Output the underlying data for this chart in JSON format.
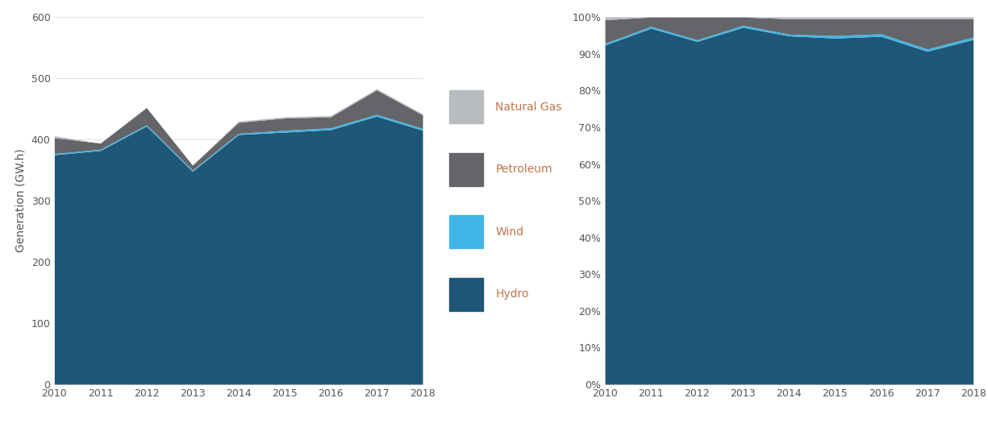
{
  "years": [
    2010,
    2011,
    2012,
    2013,
    2014,
    2015,
    2016,
    2017,
    2018
  ],
  "hydro": [
    375,
    382,
    422,
    348,
    408,
    412,
    416,
    438,
    415
  ],
  "wind": [
    2,
    2,
    2,
    2,
    2,
    3,
    3,
    3,
    3
  ],
  "petroleum": [
    26,
    10,
    28,
    8,
    18,
    20,
    18,
    40,
    22
  ],
  "natural_gas": [
    3,
    0,
    0,
    0,
    2,
    2,
    2,
    2,
    2
  ],
  "colors": {
    "hydro": "#1E5777",
    "wind": "#41B6E6",
    "petroleum": "#636569",
    "natural_gas": "#B8BCBE"
  },
  "legend_labels": {
    "natural_gas": "Natural Gas",
    "petroleum": "Petroleum",
    "wind": "Wind",
    "hydro": "Hydro"
  },
  "legend_text_color": "#C0744A",
  "ylabel_left": "Generation (GW.h)",
  "ylim_left": [
    0,
    600
  ],
  "yticks_left": [
    0,
    100,
    200,
    300,
    400,
    500,
    600
  ],
  "background_color": "#FFFFFF",
  "grid_color": "#E0E0E0",
  "tick_color": "#555555",
  "tick_fontsize": 9,
  "label_fontsize": 10
}
